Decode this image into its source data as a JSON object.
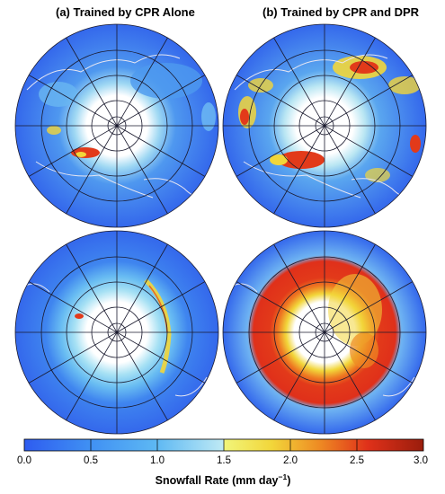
{
  "panels": {
    "a_title": "(a) Trained by CPR Alone",
    "b_title": "(b) Trained by CPR and DPR"
  },
  "colorbar": {
    "ticks": [
      "0.0",
      "0.5",
      "1.0",
      "1.5",
      "2.0",
      "2.5",
      "3.0"
    ],
    "title_main": "Snowfall Rate (mm day",
    "title_exp": "−1",
    "title_close": ")",
    "colors": [
      "#2e5cf0",
      "#3f8ff3",
      "#5db8f3",
      "#a9e3f4",
      "#e9f8a3",
      "#f2d63a",
      "#ee8a23",
      "#e0311a",
      "#a0200d"
    ]
  },
  "colors": {
    "ocean": "#3a70ee",
    "pole_white": "#ffffff",
    "grid": "#1a1a2e",
    "coast": "#e6e6f2",
    "high_snow": "#e63b1c",
    "mid_snow": "#f2d63a"
  }
}
